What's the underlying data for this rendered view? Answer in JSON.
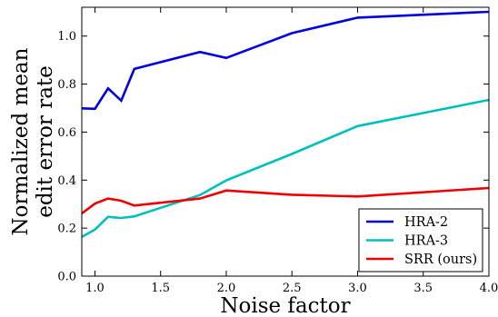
{
  "chart_data": {
    "type": "line",
    "xlabel": "Noise factor",
    "ylabel_lines": [
      "Normalized mean",
      "edit error rate"
    ],
    "xlim": [
      0.9,
      4.0
    ],
    "ylim": [
      0.0,
      1.12
    ],
    "xticks": [
      1.0,
      1.5,
      2.0,
      2.5,
      3.0,
      3.5,
      4.0
    ],
    "xtick_labels": [
      "1.0",
      "1.5",
      "2.0",
      "2.5",
      "3.0",
      "3.5",
      "4.0"
    ],
    "yticks": [
      0.0,
      0.2,
      0.4,
      0.6,
      0.8,
      1.0
    ],
    "ytick_labels": [
      "0.0",
      "0.2",
      "0.4",
      "0.6",
      "0.8",
      "1.0"
    ],
    "grid": false,
    "legend_position": "lower-right",
    "series": [
      {
        "name": "HRA-2",
        "color": "#0000e0",
        "x": [
          0.9,
          1.0,
          1.1,
          1.2,
          1.3,
          1.8,
          2.0,
          2.5,
          3.0,
          4.0
        ],
        "y": [
          0.699,
          0.697,
          0.782,
          0.731,
          0.863,
          0.934,
          0.909,
          1.012,
          1.077,
          1.101
        ]
      },
      {
        "name": "HRA-3",
        "color": "#00bfbf",
        "x": [
          0.9,
          1.0,
          1.1,
          1.2,
          1.3,
          1.8,
          2.0,
          2.5,
          3.0,
          4.0
        ],
        "y": [
          0.163,
          0.194,
          0.247,
          0.242,
          0.249,
          0.338,
          0.399,
          0.509,
          0.625,
          0.734
        ]
      },
      {
        "name": "SRR (ours)",
        "color": "#f00000",
        "x": [
          0.9,
          1.0,
          1.1,
          1.2,
          1.3,
          1.8,
          2.0,
          2.5,
          3.0,
          4.0
        ],
        "y": [
          0.261,
          0.302,
          0.323,
          0.314,
          0.294,
          0.323,
          0.357,
          0.339,
          0.332,
          0.367
        ]
      }
    ]
  }
}
